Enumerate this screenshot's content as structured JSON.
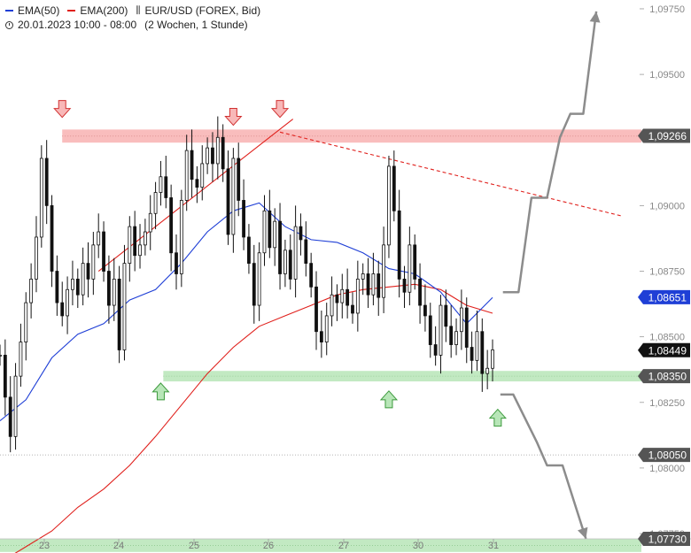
{
  "legend": {
    "ema50_label": "EMA(50)",
    "ema200_label": "EMA(200)",
    "instrument": "EUR/USD (FOREX, Bid)",
    "period": "20.01.2023 10:00 - 08:00",
    "range_note": "(2 Wochen, 1 Stunde)"
  },
  "colors": {
    "ema50": "#1f3fd6",
    "ema200": "#e0201c",
    "resistance_zone": "#f9b9b9",
    "support_zone": "#bfe8bf",
    "candle": "#111111",
    "scenario_arrow": "#8c8c8c",
    "label_dark": "#111111",
    "label_blue": "#1f3fd6",
    "label_grey": "#555555"
  },
  "chart_data": {
    "type": "candlestick",
    "instrument": "EUR/USD",
    "interval": "1 Stunde",
    "ylim": [
      1.0773,
      1.0976
    ],
    "y_ticks": [
      "1,09750",
      "1,09500",
      "1,09000",
      "1,08750",
      "1,08500",
      "1,08250",
      "1,08000",
      "1,07750"
    ],
    "x_ticks": [
      "23",
      "24",
      "25",
      "26",
      "27",
      "30",
      "31"
    ],
    "price_labels": [
      {
        "text": "1,09266",
        "value": 1.09266,
        "style": "grey"
      },
      {
        "text": "1,08651",
        "value": 1.08651,
        "style": "blue"
      },
      {
        "text": "1,08449",
        "value": 1.08449,
        "style": "dark"
      },
      {
        "text": "1,08350",
        "value": 1.0835,
        "style": "grey"
      },
      {
        "text": "1,08050",
        "value": 1.0805,
        "style": "grey"
      },
      {
        "text": "1,07730",
        "value": 1.0773,
        "style": "grey"
      }
    ],
    "zones": [
      {
        "type": "resistance",
        "low": 1.0924,
        "high": 1.0929
      },
      {
        "type": "support",
        "low": 1.0833,
        "high": 1.0837
      },
      {
        "type": "support",
        "low": 1.0768,
        "high": 1.0773
      }
    ],
    "close_series": {
      "name": "EUR/USD",
      "x": [
        0,
        2,
        4,
        6,
        8,
        10,
        12,
        14,
        16,
        18,
        20,
        22,
        24,
        26,
        28,
        30,
        32,
        34,
        36,
        38,
        40,
        42,
        44,
        46,
        48,
        50,
        52,
        54,
        56,
        58,
        60,
        62,
        64,
        66,
        68,
        70,
        72,
        74,
        76,
        78,
        80,
        82,
        84,
        86,
        88,
        90,
        92,
        94,
        96,
        98,
        100,
        102,
        104,
        106,
        108,
        110,
        112,
        114,
        116,
        118,
        120,
        122,
        124,
        126,
        128,
        130,
        132,
        134,
        136,
        138,
        140,
        142,
        144,
        146,
        148,
        150,
        152,
        154,
        156,
        158,
        160,
        162,
        164,
        166,
        168,
        170,
        172,
        174,
        176,
        178,
        180,
        182,
        184,
        186,
        188,
        190
      ],
      "close": [
        1.0843,
        1.0827,
        1.0812,
        1.0835,
        1.0848,
        1.0863,
        1.0872,
        1.0888,
        1.0918,
        1.09,
        1.0875,
        1.0863,
        1.0858,
        1.0868,
        1.0872,
        1.0866,
        1.0878,
        1.0872,
        1.0885,
        1.089,
        1.0875,
        1.0862,
        1.0872,
        1.0845,
        1.0878,
        1.0892,
        1.0881,
        1.0885,
        1.089,
        1.0897,
        1.0905,
        1.0911,
        1.0903,
        1.0882,
        1.0874,
        1.0902,
        1.0921,
        1.091,
        1.0907,
        1.0916,
        1.0922,
        1.0916,
        1.0926,
        1.0914,
        1.0889,
        1.0918,
        1.0902,
        1.0888,
        1.0878,
        1.0862,
        1.0882,
        1.0898,
        1.0884,
        1.0894,
        1.0874,
        1.0883,
        1.0872,
        1.0892,
        1.0887,
        1.0878,
        1.0869,
        1.0852,
        1.0848,
        1.0858,
        1.0866,
        1.0863,
        1.0868,
        1.0862,
        1.0859,
        1.0872,
        1.0874,
        1.0866,
        1.0874,
        1.0865,
        1.0885,
        1.0915,
        1.0898,
        1.0872,
        1.0867,
        1.0885,
        1.0872,
        1.0862,
        1.0858,
        1.0847,
        1.0843,
        1.0862,
        1.0854,
        1.0847,
        1.0852,
        1.0861,
        1.0846,
        1.0841,
        1.0852,
        1.0836,
        1.0838,
        1.0845
      ]
    },
    "series": [
      {
        "name": "EMA(50)",
        "x": [
          0,
          10,
          20,
          30,
          40,
          50,
          60,
          70,
          80,
          90,
          100,
          110,
          120,
          130,
          140,
          150,
          160,
          170,
          180,
          190
        ],
        "values": [
          1.0818,
          1.0826,
          1.0842,
          1.0851,
          1.0855,
          1.0864,
          1.0868,
          1.0878,
          1.089,
          1.0898,
          1.0901,
          1.0892,
          1.0887,
          1.0886,
          1.0882,
          1.0876,
          1.0874,
          1.0867,
          1.0855,
          1.0865
        ]
      },
      {
        "name": "EMA(200)",
        "x": [
          0,
          10,
          20,
          30,
          40,
          50,
          60,
          70,
          80,
          90,
          100,
          110,
          120,
          130,
          140,
          150,
          160,
          170,
          180,
          190
        ],
        "values": [
          1.0764,
          1.077,
          1.0776,
          1.0785,
          1.0792,
          1.0801,
          1.0812,
          1.0824,
          1.0836,
          1.0846,
          1.0854,
          1.0858,
          1.0862,
          1.0866,
          1.0868,
          1.0869,
          1.087,
          1.0868,
          1.0862,
          1.0859
        ]
      }
    ],
    "trendlines": [
      {
        "style": "solid",
        "color": "red",
        "from": [
          38,
          1.0875
        ],
        "to": [
          113,
          1.0933
        ]
      },
      {
        "style": "dashed",
        "color": "red",
        "from": [
          108,
          1.0928
        ],
        "to": [
          240,
          1.0896
        ]
      }
    ],
    "signal_arrows": [
      {
        "direction": "down",
        "color": "red",
        "x": 24,
        "y": 1.0937
      },
      {
        "direction": "down",
        "color": "red",
        "x": 90,
        "y": 1.0934
      },
      {
        "direction": "down",
        "color": "red",
        "x": 108,
        "y": 1.0937
      },
      {
        "direction": "up",
        "color": "green",
        "x": 62,
        "y": 1.0829
      },
      {
        "direction": "up",
        "color": "green",
        "x": 150,
        "y": 1.0826
      },
      {
        "direction": "up",
        "color": "green",
        "x": 192,
        "y": 1.0819
      }
    ],
    "scenario_paths": [
      {
        "direction": "up",
        "points": [
          [
            194,
            1.0867
          ],
          [
            200,
            1.0867
          ],
          [
            205,
            1.0903
          ],
          [
            211,
            1.0903
          ],
          [
            216,
            1.0926
          ],
          [
            220,
            1.0935
          ],
          [
            225,
            1.0935
          ],
          [
            230,
            1.0974
          ]
        ]
      },
      {
        "direction": "down",
        "points": [
          [
            193,
            1.0828
          ],
          [
            198,
            1.0828
          ],
          [
            207,
            1.081
          ],
          [
            211,
            1.0801
          ],
          [
            217,
            1.0801
          ],
          [
            226,
            1.0773
          ]
        ]
      }
    ],
    "x_range": [
      0,
      258
    ],
    "grid": false
  }
}
